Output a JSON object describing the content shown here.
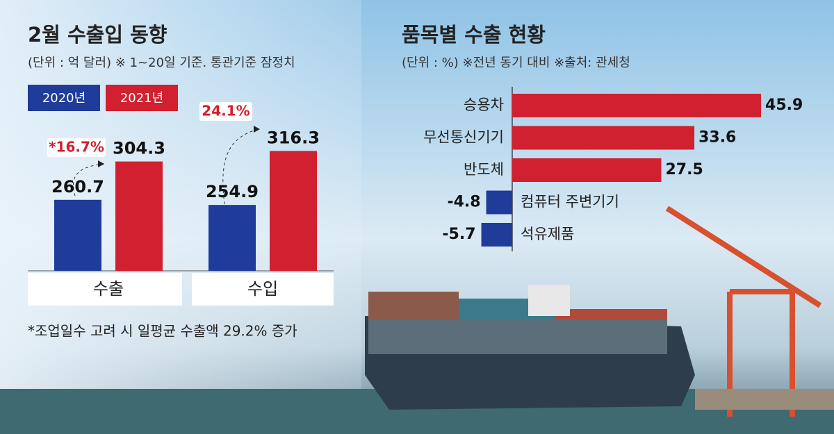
{
  "chart_data": [
    {
      "type": "grouped_bar",
      "title": "2월 수출입 동향",
      "subtitle": "(단위 : 억 달러) ※ 1~20일 기준. 통관기준 잠정치",
      "categories": [
        "수출",
        "수입"
      ],
      "series": [
        {
          "name": "2020년",
          "color": "#1f3c9a",
          "values": [
            260.7,
            254.9
          ]
        },
        {
          "name": "2021년",
          "color": "#d1202f",
          "values": [
            304.3,
            316.3
          ]
        }
      ],
      "ylim": [
        180,
        330
      ],
      "annotations": [
        "*16.7%",
        "24.1%"
      ],
      "footnote": "*조업일수 고려 시 일평균 수출액 29.2% 증가"
    },
    {
      "type": "hbar",
      "title": "품목별 수출 현황",
      "subtitle": "(단위 : %)  ※전년 동기 대비   ※출처: 관세청",
      "categories": [
        "승용차",
        "무선통신기기",
        "반도체",
        "컴퓨터 주변기기",
        "석유제품"
      ],
      "values": [
        45.9,
        33.6,
        27.5,
        -4.8,
        -5.7
      ],
      "colors": [
        "#d1202f",
        "#d1202f",
        "#d1202f",
        "#1f3c9a",
        "#1f3c9a"
      ],
      "xlim": [
        -10,
        50
      ]
    }
  ]
}
